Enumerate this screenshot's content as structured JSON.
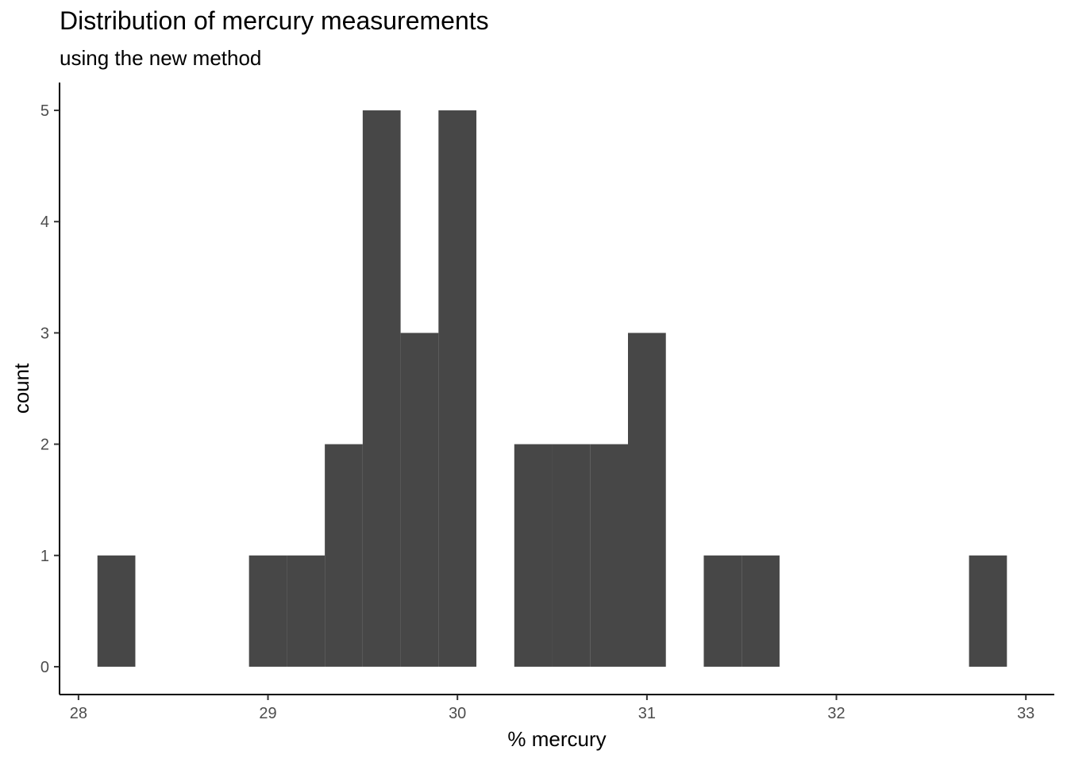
{
  "title": "Distribution of mercury measurements",
  "subtitle": "using the new method",
  "colors": {
    "bar": "#474747",
    "axis": "#000000",
    "tick_text": "#4d4d4d"
  },
  "chart_data": {
    "type": "bar",
    "title": "Distribution of mercury measurements",
    "subtitle": "using the new method",
    "xlabel": "% mercury",
    "ylabel": "count",
    "xlim": [
      27.9,
      33.15
    ],
    "ylim": [
      -0.25,
      5.25
    ],
    "xticks": [
      28,
      29,
      30,
      31,
      32,
      33
    ],
    "yticks": [
      0,
      1,
      2,
      3,
      4,
      5
    ],
    "grid": false,
    "legend": "none",
    "bins": [
      {
        "x0": 28.1,
        "x1": 28.3,
        "count": 1
      },
      {
        "x0": 28.3,
        "x1": 28.5,
        "count": 0
      },
      {
        "x0": 28.5,
        "x1": 28.7,
        "count": 0
      },
      {
        "x0": 28.7,
        "x1": 28.9,
        "count": 0
      },
      {
        "x0": 28.9,
        "x1": 29.1,
        "count": 1
      },
      {
        "x0": 29.1,
        "x1": 29.3,
        "count": 1
      },
      {
        "x0": 29.3,
        "x1": 29.5,
        "count": 2
      },
      {
        "x0": 29.5,
        "x1": 29.7,
        "count": 5
      },
      {
        "x0": 29.7,
        "x1": 29.9,
        "count": 3
      },
      {
        "x0": 29.9,
        "x1": 30.1,
        "count": 5
      },
      {
        "x0": 30.1,
        "x1": 30.3,
        "count": 0
      },
      {
        "x0": 30.3,
        "x1": 30.5,
        "count": 2
      },
      {
        "x0": 30.5,
        "x1": 30.7,
        "count": 2
      },
      {
        "x0": 30.7,
        "x1": 30.9,
        "count": 2
      },
      {
        "x0": 30.9,
        "x1": 31.1,
        "count": 3
      },
      {
        "x0": 31.1,
        "x1": 31.3,
        "count": 0
      },
      {
        "x0": 31.3,
        "x1": 31.5,
        "count": 1
      },
      {
        "x0": 31.5,
        "x1": 31.7,
        "count": 1
      },
      {
        "x0": 31.7,
        "x1": 31.9,
        "count": 0
      },
      {
        "x0": 31.9,
        "x1": 32.1,
        "count": 0
      },
      {
        "x0": 32.1,
        "x1": 32.3,
        "count": 0
      },
      {
        "x0": 32.3,
        "x1": 32.5,
        "count": 0
      },
      {
        "x0": 32.5,
        "x1": 32.7,
        "count": 0
      },
      {
        "x0": 32.7,
        "x1": 32.9,
        "count": 1
      }
    ]
  }
}
